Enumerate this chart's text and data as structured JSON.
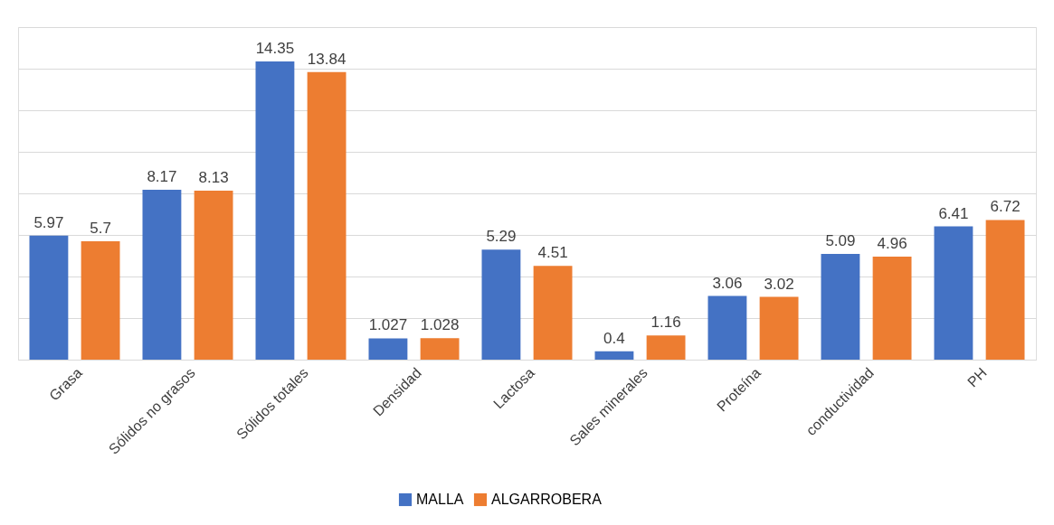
{
  "chart_data": {
    "type": "bar",
    "categories": [
      "Grasa",
      "Sólidos no grasos",
      "Sólidos totales",
      "Densidad",
      "Lactosa",
      "Sales minerales",
      "Proteína",
      "conductividad",
      "PH"
    ],
    "series": [
      {
        "name": "MALLA",
        "color": "#4472c4",
        "values": [
          5.97,
          8.17,
          14.35,
          1.027,
          5.29,
          0.4,
          3.06,
          5.09,
          6.41
        ]
      },
      {
        "name": "ALGARROBERA",
        "color": "#ed7d31",
        "values": [
          5.7,
          8.13,
          13.84,
          1.028,
          4.51,
          1.16,
          3.02,
          4.96,
          6.72
        ]
      }
    ],
    "ylim": [
      0,
      16
    ],
    "grid": "y",
    "tick_labels": "x",
    "legend": "bottom",
    "data_labels": true
  }
}
